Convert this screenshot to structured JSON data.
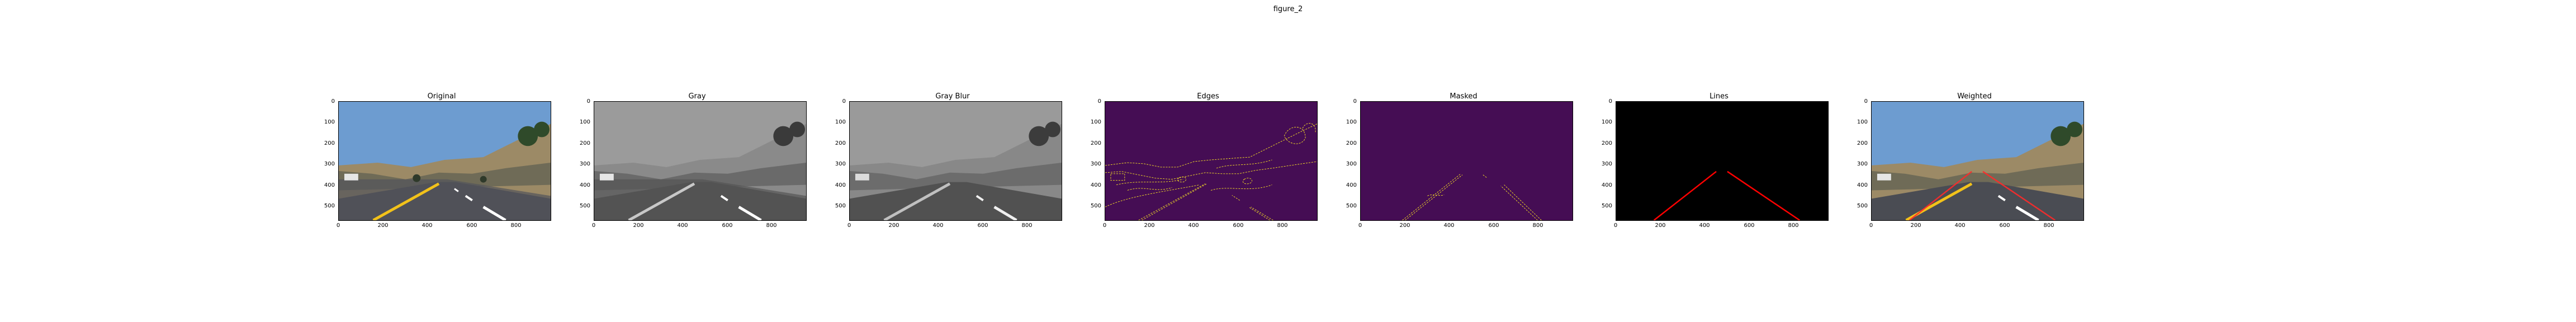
{
  "window": {
    "title": "figure_2"
  },
  "axes": {
    "yticks": [
      "0",
      "100",
      "200",
      "300",
      "400",
      "500"
    ],
    "xticks": [
      "0",
      "200",
      "400",
      "600",
      "800"
    ]
  },
  "panels": [
    {
      "title": "Original"
    },
    {
      "title": "Gray"
    },
    {
      "title": "Gray Blur"
    },
    {
      "title": "Edges"
    },
    {
      "title": "Masked"
    },
    {
      "title": "Lines"
    },
    {
      "title": "Weighted"
    }
  ],
  "colors": {
    "sky": "#5e92c4",
    "road": "#4a4c53",
    "hills": "#a89670",
    "edges_bg": "#450d54",
    "edges_fg": "#fbe723",
    "line_red": "#ff0000",
    "lines_bg": "#000000",
    "yellow_lane": "#f2c21a"
  }
}
